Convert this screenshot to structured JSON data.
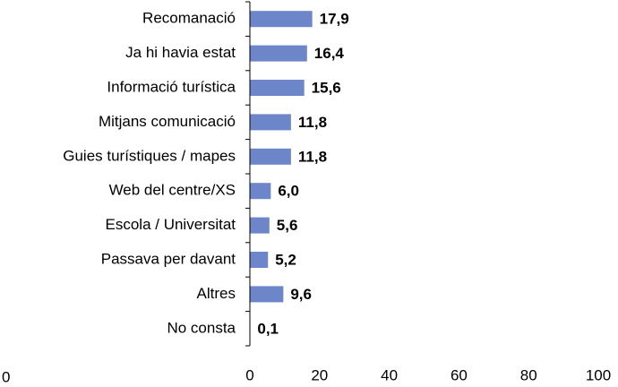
{
  "chart_data": {
    "type": "bar",
    "orientation": "horizontal",
    "categories": [
      "Recomanació",
      "Ja hi havia estat",
      "Informació turística",
      "Mitjans comunicació",
      "Guies turístiques / mapes",
      "Web del centre/XS",
      "Escola / Universitat",
      "Passava per davant",
      "Altres",
      "No consta"
    ],
    "values": [
      17.9,
      16.4,
      15.6,
      11.8,
      11.8,
      6.0,
      5.6,
      5.2,
      9.6,
      0.1
    ],
    "value_labels": [
      "17,9",
      "16,4",
      "15,6",
      "11,8",
      "11,8",
      "6,0",
      "5,6",
      "5,2",
      "9,6",
      "0,1"
    ],
    "color": "#6d86c9",
    "xlim": [
      0,
      100
    ],
    "xticks": [
      0,
      20,
      40,
      60,
      80,
      100
    ],
    "annotation": "0"
  }
}
